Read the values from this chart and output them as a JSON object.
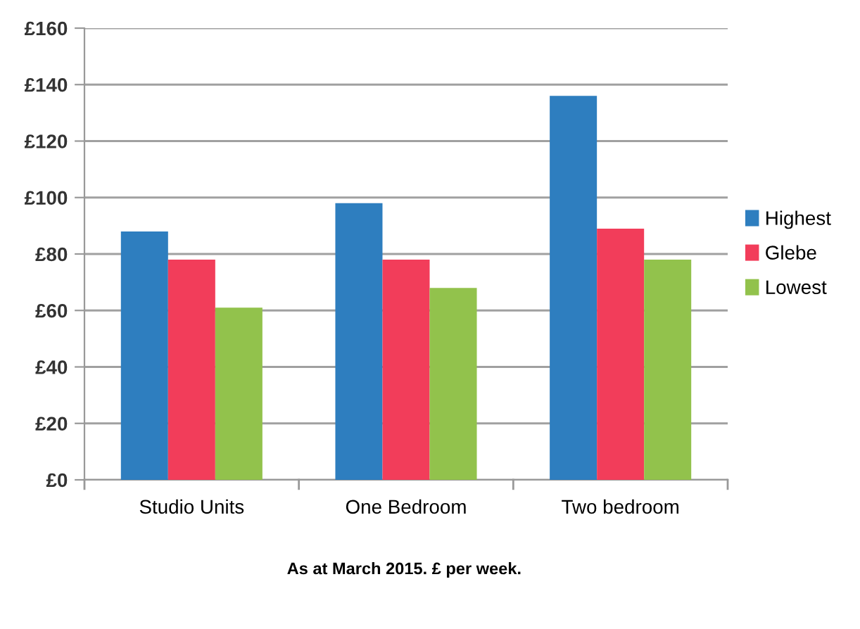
{
  "chart_data": {
    "type": "bar",
    "categories": [
      "Studio Units",
      "One Bedroom",
      "Two bedroom"
    ],
    "series": [
      {
        "name": "Highest",
        "color": "#2e7ebf",
        "values": [
          88,
          98,
          136
        ]
      },
      {
        "name": "Glebe",
        "color": "#f23d5a",
        "values": [
          78,
          78,
          89
        ]
      },
      {
        "name": "Lowest",
        "color": "#92c24c",
        "values": [
          61,
          68,
          78
        ]
      }
    ],
    "ylim": [
      0,
      160
    ],
    "yticks": [
      {
        "value": 0,
        "label": "£0"
      },
      {
        "value": 20,
        "label": "£20"
      },
      {
        "value": 40,
        "label": "£40"
      },
      {
        "value": 60,
        "label": "£60"
      },
      {
        "value": 80,
        "label": "£80"
      },
      {
        "value": 100,
        "label": "£100"
      },
      {
        "value": 120,
        "label": "£120"
      },
      {
        "value": 140,
        "label": "£140"
      },
      {
        "value": 160,
        "label": "£160"
      }
    ],
    "grid": "y",
    "legend": "right",
    "annotations": [
      "As at March 2015. £ per week."
    ]
  }
}
